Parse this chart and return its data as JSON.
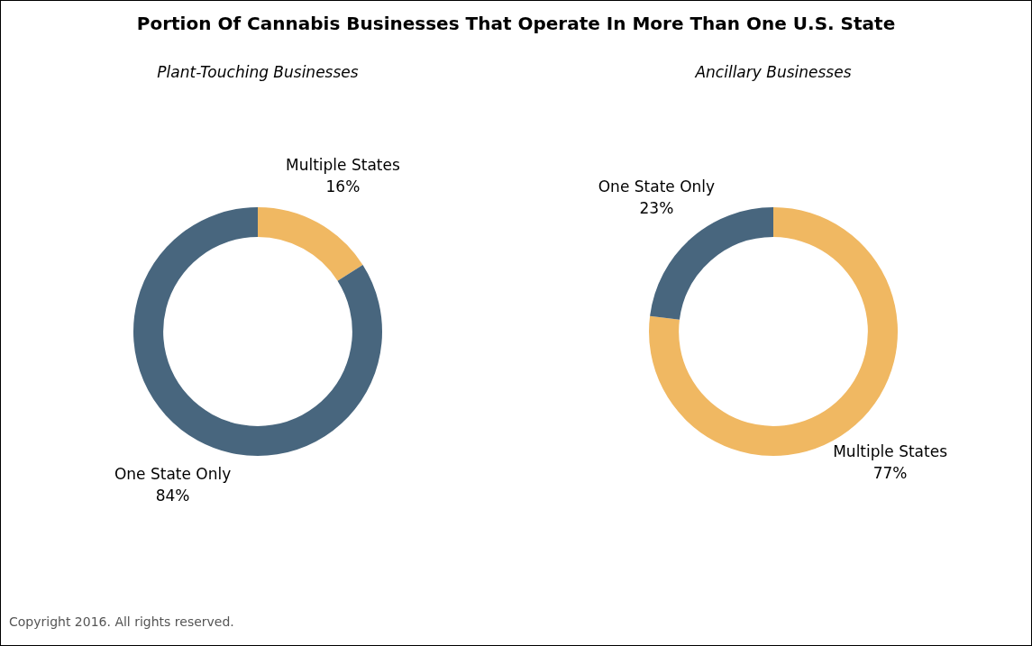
{
  "chart_data": [
    {
      "type": "donut",
      "title": "Portion Of Cannabis Businesses That Operate In More Than One U.S. State",
      "subtitle": "Plant-Touching Businesses",
      "categories": [
        "Multiple States",
        "One State Only"
      ],
      "values": [
        16,
        84
      ],
      "value_labels": [
        "16%",
        "84%"
      ],
      "colors": [
        "#f0b862",
        "#48667e"
      ],
      "legend": false
    },
    {
      "type": "donut",
      "subtitle": "Ancillary Businesses",
      "categories": [
        "Multiple States",
        "One State Only"
      ],
      "values": [
        77,
        23
      ],
      "value_labels": [
        "77%",
        "23%"
      ],
      "colors": [
        "#f0b862",
        "#48667e"
      ],
      "legend": false,
      "annotations": [
        "Copyright 2016. All rights reserved."
      ]
    }
  ]
}
